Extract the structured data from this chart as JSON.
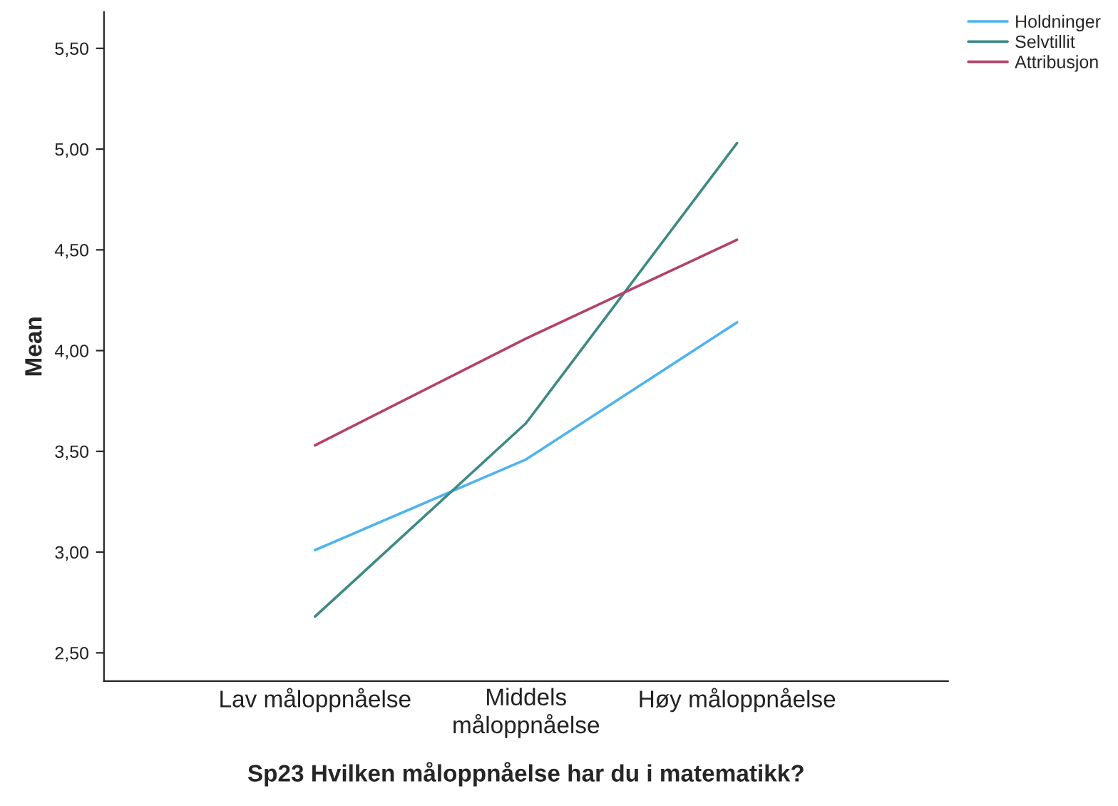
{
  "chart_data": {
    "type": "line",
    "xlabel": "Sp23 Hvilken måloppnåelse har du i matematikk?",
    "ylabel": "Mean",
    "categories": [
      "Lav måloppnåelse",
      "Middels\nmåloppnåelse",
      "Høy måloppnåelse"
    ],
    "series": [
      {
        "name": "Holdninger",
        "color": "#4eb3f0",
        "values": [
          3.01,
          3.46,
          4.14
        ]
      },
      {
        "name": "Selvtillit",
        "color": "#3d8a86",
        "values": [
          2.68,
          3.64,
          5.03
        ]
      },
      {
        "name": "Attribusjon",
        "color": "#b5406a",
        "values": [
          3.53,
          4.06,
          4.55
        ]
      }
    ],
    "ylim": [
      2.36,
      5.68
    ],
    "yticks": [
      {
        "value": 2.5,
        "label": "2,50"
      },
      {
        "value": 3.0,
        "label": "3,00"
      },
      {
        "value": 3.5,
        "label": "3,50"
      },
      {
        "value": 4.0,
        "label": "4,00"
      },
      {
        "value": 4.5,
        "label": "4,50"
      },
      {
        "value": 5.0,
        "label": "5,00"
      },
      {
        "value": 5.5,
        "label": "5,50"
      }
    ],
    "grid": false,
    "legend": "top right",
    "marker": "none",
    "line_style": "solid"
  }
}
